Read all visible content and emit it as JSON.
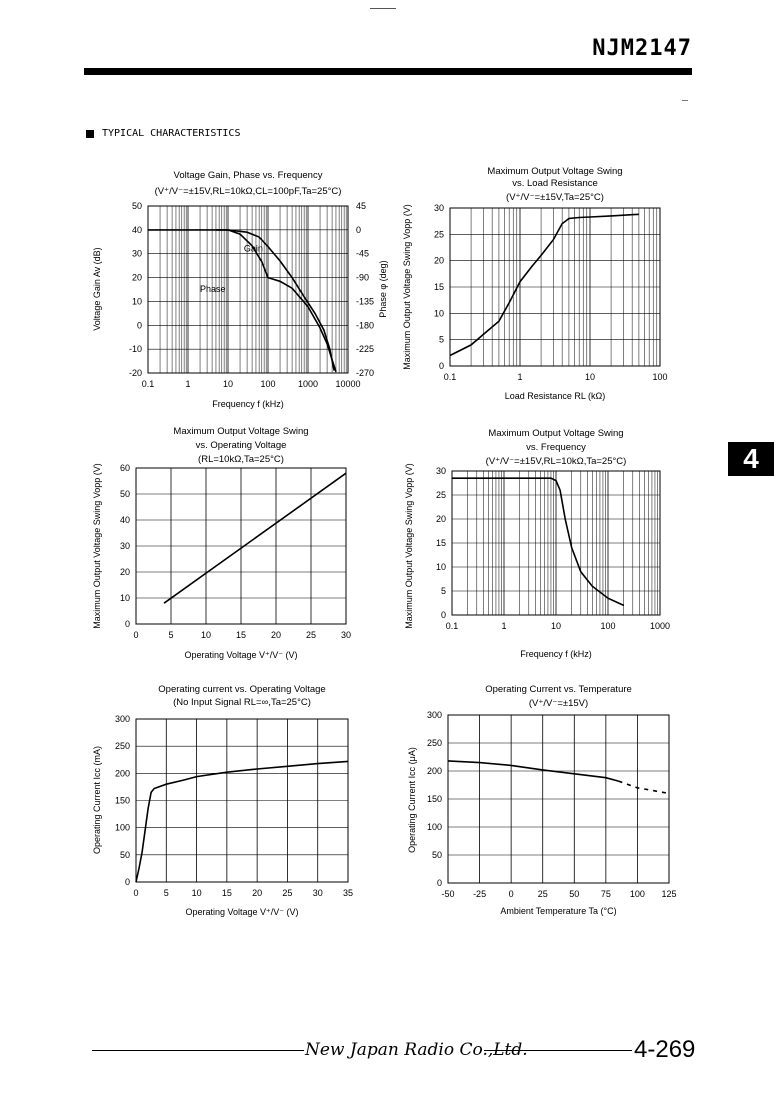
{
  "header": {
    "part_number": "NJM2147",
    "section_title": "TYPICAL CHARACTERISTICS",
    "tab_label": "4"
  },
  "footer": {
    "company": "New Japan Radio Co.,Ltd.",
    "page": "4-269"
  },
  "chart_data": [
    {
      "id": "c1",
      "type": "line",
      "title": "Voltage Gain, Phase vs. Frequency",
      "subtitle": "(V⁺/V⁻=±15V,RL=10kΩ,CL=100pF,Ta=25°C)",
      "xlabel": "Frequency   f (kHz)",
      "xscale": "log",
      "xlim": [
        0.1,
        10000
      ],
      "xticks": [
        0.1,
        1,
        10,
        100,
        1000,
        10000
      ],
      "xtick_labels": [
        "0.1",
        "1",
        "10",
        "100",
        "1000",
        "10000"
      ],
      "ylabel": "Voltage Gain   Av (dB)",
      "ylim": [
        -20,
        50
      ],
      "yticks": [
        -20,
        -10,
        0,
        10,
        20,
        30,
        40,
        50
      ],
      "y2label": "Phase   φ (deg)",
      "y2lim": [
        -270,
        45
      ],
      "y2ticks": [
        -270,
        -225,
        -180,
        -135,
        -90,
        -45,
        0,
        45
      ],
      "annotations": [
        "Gain",
        "Phase"
      ],
      "series": [
        {
          "name": "Gain",
          "axis": "y",
          "x": [
            0.1,
            1,
            10,
            30,
            60,
            100,
            200,
            400,
            800,
            1500,
            2500,
            3500,
            4500
          ],
          "values": [
            40,
            40,
            40,
            39,
            37,
            33,
            27,
            20,
            12,
            5,
            -2,
            -10,
            -19
          ]
        },
        {
          "name": "Phase",
          "axis": "y2",
          "x": [
            5,
            10,
            20,
            40,
            70,
            100,
            200,
            400,
            1000,
            2000,
            3000,
            4000,
            5000
          ],
          "values": [
            0,
            0,
            -8,
            -30,
            -60,
            -90,
            -97,
            -110,
            -145,
            -185,
            -215,
            -245,
            -268
          ]
        }
      ]
    },
    {
      "id": "c2",
      "type": "line",
      "title": "Maximum Output Voltage Swing",
      "subtitle": "vs. Load Resistance",
      "condition": "(V⁺/V⁻=±15V,Ta=25°C)",
      "xlabel": "Load Resistance   RL (kΩ)",
      "xscale": "log",
      "xlim": [
        0.1,
        100
      ],
      "xticks": [
        0.1,
        1,
        10,
        100
      ],
      "xtick_labels": [
        "0.1",
        "1",
        "10",
        "100"
      ],
      "ylabel": "Maximum Output Voltage Swing   Vopp (V)",
      "ylim": [
        0,
        30
      ],
      "yticks": [
        0,
        5,
        10,
        15,
        20,
        25,
        30
      ],
      "series": [
        {
          "x": [
            0.1,
            0.2,
            0.3,
            0.5,
            0.7,
            1,
            1.5,
            2,
            3,
            4,
            5,
            7,
            10,
            20,
            50
          ],
          "values": [
            2,
            4,
            6,
            8.5,
            12,
            16,
            19,
            21,
            24,
            27,
            28,
            28.2,
            28.3,
            28.5,
            28.8
          ]
        }
      ]
    },
    {
      "id": "c3",
      "type": "line",
      "title": "Maximum Output Voltage Swing",
      "subtitle": "vs. Operating Voltage",
      "condition": "(RL=10kΩ,Ta=25°C)",
      "xlabel": "Operating Voltage   V⁺/V⁻ (V)",
      "xlim": [
        0,
        30
      ],
      "xticks": [
        0,
        5,
        10,
        15,
        20,
        25,
        30
      ],
      "ylabel": "Maximum Output Voltage Swing   Vopp (V)",
      "ylim": [
        0,
        60
      ],
      "yticks": [
        0,
        10,
        20,
        30,
        40,
        50,
        60
      ],
      "series": [
        {
          "x": [
            4,
            30
          ],
          "values": [
            8,
            58
          ]
        }
      ]
    },
    {
      "id": "c4",
      "type": "line",
      "title": "Maximum Output Voltage Swing",
      "subtitle": "vs. Frequency",
      "condition": "(V⁺/V⁻=±15V,RL=10kΩ,Ta=25°C)",
      "xlabel": "Frequency   f (kHz)",
      "xscale": "log",
      "xlim": [
        0.1,
        1000
      ],
      "xticks": [
        0.1,
        1,
        10,
        100,
        1000
      ],
      "xtick_labels": [
        "0.1",
        "1",
        "10",
        "100",
        "1000"
      ],
      "ylabel": "Maximum Output Voltage Swing   Vopp (V)",
      "ylim": [
        0,
        30
      ],
      "yticks": [
        0,
        5,
        10,
        15,
        20,
        25,
        30
      ],
      "series": [
        {
          "x": [
            0.1,
            1,
            5,
            8,
            10,
            12,
            15,
            20,
            30,
            50,
            100,
            200
          ],
          "values": [
            28.5,
            28.5,
            28.5,
            28.5,
            28,
            26,
            20,
            14,
            9,
            6,
            3.5,
            2
          ]
        }
      ]
    },
    {
      "id": "c5",
      "type": "line",
      "title": "Operating current vs. Operating Voltage",
      "subtitle": "(No Input Signal  RL=∞,Ta=25°C)",
      "xlabel": "Operating Voltage   V⁺/V⁻ (V)",
      "xlim": [
        0,
        35
      ],
      "xticks": [
        0,
        5,
        10,
        15,
        20,
        25,
        30,
        35
      ],
      "ylabel": "Operating Current   Icc (mA)",
      "ylim": [
        0,
        300
      ],
      "yticks": [
        0,
        50,
        100,
        150,
        200,
        250,
        300
      ],
      "series": [
        {
          "x": [
            0,
            0.5,
            1,
            1.5,
            2,
            2.5,
            3,
            5,
            8,
            10,
            15,
            20,
            25,
            30,
            35
          ],
          "values": [
            0,
            25,
            55,
            95,
            135,
            165,
            172,
            180,
            188,
            194,
            202,
            208,
            213,
            218,
            222
          ]
        }
      ]
    },
    {
      "id": "c6",
      "type": "line",
      "title": "Operating Current vs. Temperature",
      "subtitle": "(V⁺/V⁻=±15V)",
      "xlabel": "Ambient Temperature   Ta (°C)",
      "xlim": [
        -50,
        125
      ],
      "xticks": [
        -50,
        -25,
        0,
        25,
        50,
        75,
        100,
        125
      ],
      "ylabel": "Operating Current   Icc (μA)",
      "ylim": [
        0,
        300
      ],
      "yticks": [
        0,
        50,
        100,
        150,
        200,
        250,
        300
      ],
      "series": [
        {
          "style": "solid",
          "x": [
            -50,
            -25,
            0,
            25,
            50,
            75,
            85
          ],
          "values": [
            218,
            215,
            210,
            202,
            195,
            188,
            182
          ]
        },
        {
          "style": "dashed",
          "x": [
            85,
            100,
            125
          ],
          "values": [
            182,
            170,
            160
          ]
        }
      ]
    }
  ]
}
